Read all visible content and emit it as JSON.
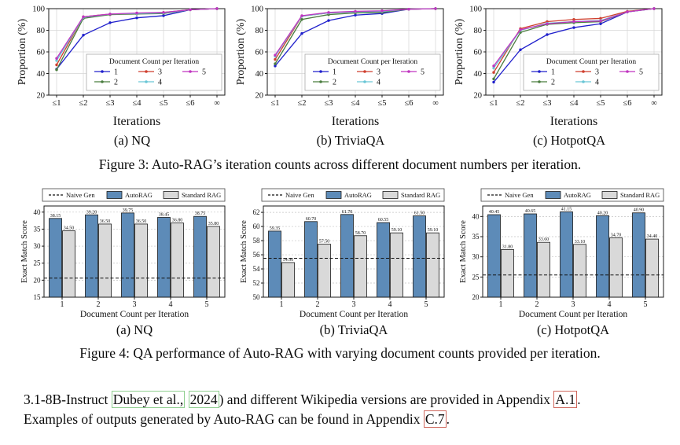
{
  "figure3": {
    "caption": "Figure 3: Auto-RAG’s iteration counts across different document numbers per iteration.",
    "subcaptions": [
      "(a) NQ",
      "(b) TriviaQA",
      "(c) HotpotQA"
    ]
  },
  "figure4": {
    "caption": "Figure 4: QA performance of Auto-RAG with varying document counts provided per iteration.",
    "subcaptions": [
      "(a) NQ",
      "(b) TriviaQA",
      "(c) HotpotQA"
    ]
  },
  "paragraph": {
    "line1": {
      "t1": "3.1-8B-Instruct ",
      "cite_author": "Dubey et al.,",
      "sep": " ",
      "cite_year": "2024",
      "t2": ") and different Wikipedia versions are provided in Appendix ",
      "ref": "A.1",
      "t3": "."
    },
    "line2": {
      "t1": "Examples of outputs generated by Auto-RAG can be found in Appendix ",
      "ref": "C.7",
      "t2": "."
    }
  },
  "colors": {
    "doc1_blue": "#2020cc",
    "doc2_green": "#4a7d3f",
    "doc3_red": "#cf3f2e",
    "doc4_cyan": "#6ac6d6",
    "doc5_magenta": "#c035c0",
    "autorag_bar": "#5d8bb8",
    "standard_rag_bar": "#d9d9d9",
    "naive_gen_line": "#111111"
  },
  "chart_data": [
    {
      "type": "line",
      "panel": "(a) NQ",
      "xlabel": "Iterations",
      "ylabel": "Proportion (%)",
      "x_ticks": [
        "≤1",
        "≤2",
        "≤3",
        "≤4",
        "≤5",
        "≤6",
        "∞"
      ],
      "y_ticks": [
        20,
        40,
        60,
        80,
        100
      ],
      "ylim": [
        20,
        100
      ],
      "grid": true,
      "legend_title": "Document Count per Iteration",
      "series": [
        {
          "name": "1",
          "color": "#2020cc",
          "values": [
            44,
            75.5,
            87,
            91.5,
            93.5,
            99,
            100
          ]
        },
        {
          "name": "2",
          "color": "#4a7d3f",
          "values": [
            43.5,
            91,
            94.5,
            95,
            95.5,
            99,
            100
          ]
        },
        {
          "name": "3",
          "color": "#cf3f2e",
          "values": [
            48,
            92.5,
            95,
            95.5,
            96.5,
            99,
            100
          ]
        },
        {
          "name": "4",
          "color": "#6ac6d6",
          "values": [
            52,
            92,
            95,
            95.5,
            96,
            99,
            100
          ]
        },
        {
          "name": "5",
          "color": "#c035c0",
          "values": [
            54,
            92.5,
            95,
            96,
            96.5,
            99,
            100
          ]
        }
      ]
    },
    {
      "type": "line",
      "panel": "(b) TriviaQA",
      "xlabel": "Iterations",
      "ylabel": "Proportion (%)",
      "x_ticks": [
        "≤1",
        "≤2",
        "≤3",
        "≤4",
        "≤5",
        "≤6",
        "∞"
      ],
      "y_ticks": [
        20,
        40,
        60,
        80,
        100
      ],
      "ylim": [
        20,
        100
      ],
      "grid": true,
      "legend_title": "Document Count per Iteration",
      "series": [
        {
          "name": "1",
          "color": "#2020cc",
          "values": [
            47,
            77,
            89,
            94,
            95.5,
            99.5,
            100
          ]
        },
        {
          "name": "2",
          "color": "#4a7d3f",
          "values": [
            49,
            90,
            94.5,
            96,
            96.5,
            99.5,
            100
          ]
        },
        {
          "name": "3",
          "color": "#cf3f2e",
          "values": [
            53,
            93,
            96,
            97,
            97.5,
            99.5,
            100
          ]
        },
        {
          "name": "4",
          "color": "#6ac6d6",
          "values": [
            56,
            93,
            96,
            97,
            97.5,
            99.5,
            100
          ]
        },
        {
          "name": "5",
          "color": "#c035c0",
          "values": [
            57,
            93.5,
            96.5,
            97.5,
            98,
            99.5,
            100
          ]
        }
      ]
    },
    {
      "type": "line",
      "panel": "(c) HotpotQA",
      "xlabel": "Iterations",
      "ylabel": "Proportion (%)",
      "x_ticks": [
        "≤1",
        "≤2",
        "≤3",
        "≤4",
        "≤5",
        "≤6",
        "∞"
      ],
      "y_ticks": [
        20,
        40,
        60,
        80,
        100
      ],
      "ylim": [
        20,
        100
      ],
      "grid": true,
      "legend_title": "Document Count per Iteration",
      "series": [
        {
          "name": "1",
          "color": "#2020cc",
          "values": [
            32,
            62,
            76,
            82.5,
            86,
            97,
            100
          ]
        },
        {
          "name": "2",
          "color": "#4a7d3f",
          "values": [
            35,
            78,
            85.5,
            87,
            88,
            97,
            100
          ]
        },
        {
          "name": "3",
          "color": "#cf3f2e",
          "values": [
            41,
            81.5,
            88,
            90,
            91,
            97.5,
            100
          ]
        },
        {
          "name": "4",
          "color": "#6ac6d6",
          "values": [
            45,
            80,
            86.5,
            88,
            89,
            97,
            100
          ]
        },
        {
          "name": "5",
          "color": "#c035c0",
          "values": [
            47,
            80.5,
            86,
            88,
            88.5,
            97,
            100
          ]
        }
      ]
    },
    {
      "type": "bar",
      "panel": "(a) NQ",
      "xlabel": "Document Count per Iteration",
      "ylabel": "Exact Match Score",
      "categories": [
        "1",
        "2",
        "3",
        "4",
        "5"
      ],
      "y_ticks": [
        15,
        20,
        25,
        30,
        35,
        40
      ],
      "ylim": [
        15,
        41.8
      ],
      "grid": true,
      "legend": [
        "Naive Gen",
        "AutoRAG",
        "Standard RAG"
      ],
      "naive_gen": 20.6,
      "series": [
        {
          "name": "AutoRAG",
          "color": "#5d8bb8",
          "values": [
            38.15,
            39.2,
            39.75,
            38.45,
            38.75
          ]
        },
        {
          "name": "Standard RAG",
          "color": "#d9d9d9",
          "values": [
            34.5,
            36.5,
            36.5,
            36.8,
            35.8
          ]
        }
      ]
    },
    {
      "type": "bar",
      "panel": "(b) TriviaQA",
      "xlabel": "Document Count per Iteration",
      "ylabel": "Exact Match Score",
      "categories": [
        "1",
        "2",
        "3",
        "4",
        "5"
      ],
      "y_ticks": [
        50,
        52,
        54,
        56,
        58,
        60,
        62
      ],
      "ylim": [
        50,
        62.9
      ],
      "grid": true,
      "legend": [
        "Naive Gen",
        "AutoRAG",
        "Standard RAG"
      ],
      "naive_gen": 55.5,
      "series": [
        {
          "name": "AutoRAG",
          "color": "#5d8bb8",
          "values": [
            59.35,
            60.7,
            61.7,
            60.55,
            61.5
          ]
        },
        {
          "name": "Standard RAG",
          "color": "#d9d9d9",
          "values": [
            54.9,
            57.5,
            58.7,
            59.1,
            59.1
          ]
        }
      ]
    },
    {
      "type": "bar",
      "panel": "(c) HotpotQA",
      "xlabel": "Document Count per Iteration",
      "ylabel": "Exact Match Score",
      "categories": [
        "1",
        "2",
        "3",
        "4",
        "5"
      ],
      "y_ticks": [
        20,
        25,
        30,
        35,
        40
      ],
      "ylim": [
        20,
        42.6
      ],
      "grid": true,
      "legend": [
        "Naive Gen",
        "AutoRAG",
        "Standard RAG"
      ],
      "naive_gen": 25.5,
      "series": [
        {
          "name": "AutoRAG",
          "color": "#5d8bb8",
          "values": [
            40.45,
            40.65,
            41.15,
            40.2,
            40.9
          ]
        },
        {
          "name": "Standard RAG",
          "color": "#d9d9d9",
          "values": [
            31.8,
            33.6,
            33.1,
            34.7,
            34.4
          ]
        }
      ]
    }
  ]
}
